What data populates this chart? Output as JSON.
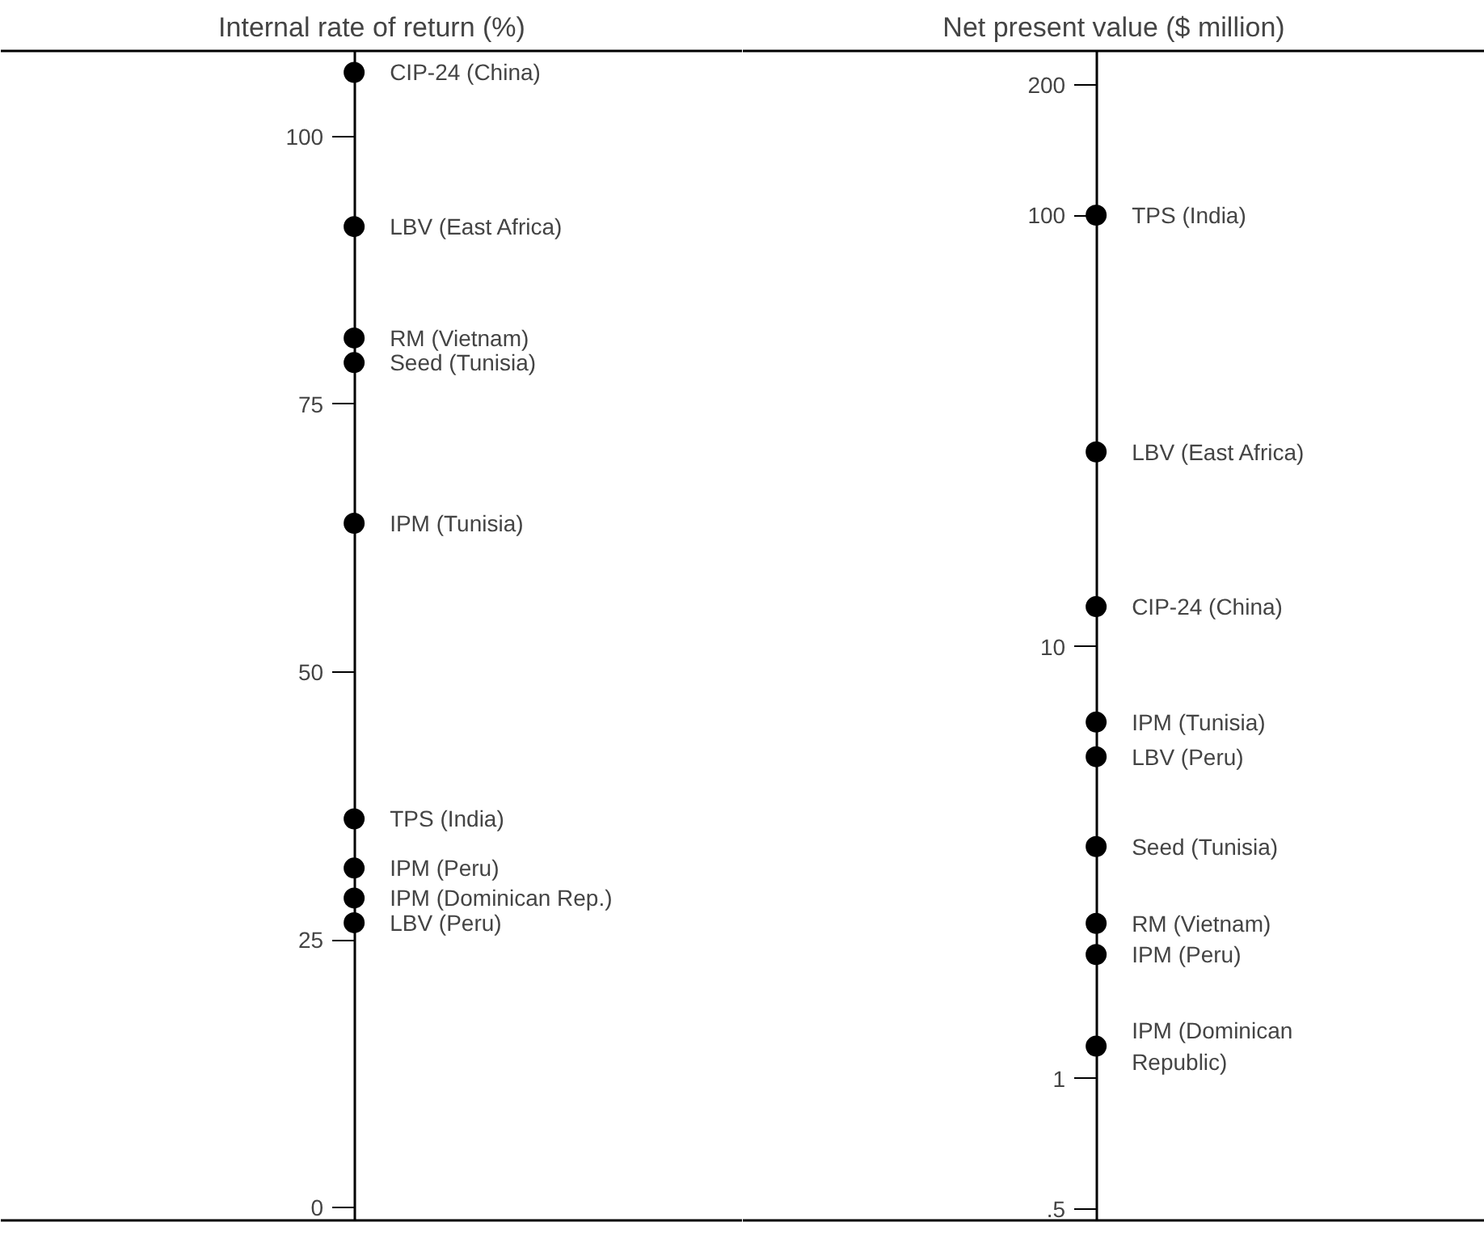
{
  "chart_data": [
    {
      "type": "scatter",
      "title": "Internal rate of return (%)",
      "categories": [
        null
      ],
      "marker": "circle",
      "ylim": [
        -1.2,
        108
      ],
      "yticks": [
        0,
        25,
        50,
        75,
        100
      ],
      "tick_labels": "y",
      "grid": false,
      "series": [
        {
          "name": "CIP-24 (China)",
          "color": "#000000",
          "values": [
            106
          ]
        },
        {
          "name": "LBV (East Africa)",
          "color": "#000000",
          "values": [
            91.6
          ]
        },
        {
          "name": "RM (Vietnam)",
          "color": "#000000",
          "values": [
            81.2
          ]
        },
        {
          "name": "Seed (Tunisia)",
          "color": "#000000",
          "values": [
            78.9
          ]
        },
        {
          "name": "IPM  (Tunisia)",
          "color": "#000000",
          "values": [
            63.9
          ]
        },
        {
          "name": "TPS (India)",
          "color": "#000000",
          "values": [
            36.3
          ]
        },
        {
          "name": "IPM (Peru)",
          "color": "#000000",
          "values": [
            31.7
          ]
        },
        {
          "name": "IPM (Dominican Rep.)",
          "color": "#000000",
          "values": [
            28.9
          ]
        },
        {
          "name": "LBV (Peru)",
          "color": "#000000",
          "values": [
            26.6
          ]
        }
      ]
    },
    {
      "type": "scatter",
      "title": "Net present value ($ million)",
      "categories": [
        null
      ],
      "marker": "circle",
      "log": "y",
      "ylim": [
        0.47,
        240
      ],
      "yticks": [
        {
          "value": 0.5,
          "label": ".5"
        },
        1,
        10,
        100,
        200
      ],
      "tick_labels": "y",
      "grid": false,
      "series": [
        {
          "name": "TPS (India)",
          "color": "#000000",
          "values": [
            100
          ]
        },
        {
          "name": "LBV (East Africa)",
          "color": "#000000",
          "values": [
            28.3
          ]
        },
        {
          "name": "CIP-24 (China)",
          "color": "#000000",
          "values": [
            12.4
          ]
        },
        {
          "name": "IPM (Tunisia)",
          "color": "#000000",
          "values": [
            6.7
          ]
        },
        {
          "name": "LBV (Peru)",
          "color": "#000000",
          "values": [
            5.57
          ]
        },
        {
          "name": "Seed (Tunisia)",
          "color": "#000000",
          "values": [
            3.45
          ]
        },
        {
          "name": "RM (Vietnam)",
          "color": "#000000",
          "values": [
            2.29
          ]
        },
        {
          "name": "IPM (Peru)",
          "color": "#000000",
          "values": [
            1.94
          ]
        },
        {
          "name": "IPM (Dominican\n      Republic)",
          "color": "#000000",
          "values": [
            1.19
          ]
        }
      ]
    }
  ]
}
